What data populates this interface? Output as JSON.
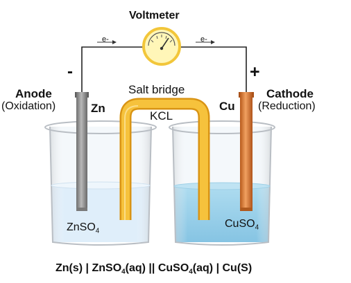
{
  "labels": {
    "voltmeter": "Voltmeter",
    "electron_left": "e-",
    "electron_right": "e-",
    "minus": "-",
    "plus": "+",
    "anode": "Anode",
    "oxidation": "(Oxidation)",
    "zn": "Zn",
    "cu": "Cu",
    "cathode": "Cathode",
    "reduction": "(Reduction)",
    "salt_bridge": "Salt bridge",
    "kcl": "KCL"
  },
  "left_solution": {
    "main": "ZnSO",
    "sub": "4"
  },
  "right_solution": {
    "main": "CuSO",
    "sub": "4"
  },
  "cell_notation": {
    "part1": "Zn(s) |  ZnSO",
    "sub1": "4",
    "part2": "(aq) || CuSO",
    "sub2": "4",
    "part3": "(aq) | Cu(S)"
  },
  "colors": {
    "wire": "#222222",
    "zinc_electrode": "#8f8f8f",
    "copper_electrode": "#d9772e",
    "salt_bridge": "#f4b72a",
    "znso4_solution": "#dfeefa",
    "cuso4_solution": "#97cfea",
    "voltmeter_face": "#fff6b8",
    "voltmeter_rim": "#f2c63a"
  }
}
